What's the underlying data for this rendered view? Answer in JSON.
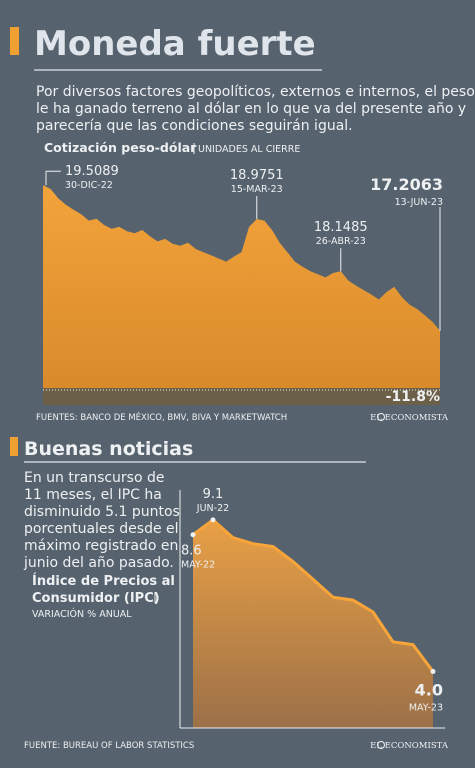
{
  "header": {
    "title": "Moneda fuerte",
    "intro_lines": [
      "Por diversos factores geopolíticos, externos e internos, el peso",
      "le ha ganado terreno al dólar en lo que va del presente año y",
      "parecería que las condiciones seguirán igual."
    ],
    "source": "FUENTES: BANCO DE MÉXICO, BMV, BIVA Y MARKETWATCH",
    "brand": "EL ECONOMISTA"
  },
  "section2": {
    "title": "Buenas noticias",
    "text_lines": [
      "En un transcurso de",
      "11 meses, el IPC ha",
      "disminuido 5.1 puntos",
      "porcentuales desde el",
      "máximo registrado en",
      "junio del año pasado."
    ],
    "source": "FUENTE: BUREAU OF LABOR STATISTICS",
    "brand": "EL ECONOMISTA"
  },
  "chart_data": [
    {
      "type": "area",
      "title": "Cotización peso-dólar",
      "subtitle": "UNIDADES AL CIERRE",
      "change_label": "-11.8%",
      "color": "#f0a030",
      "categories": [
        "30-DIC-22",
        null,
        null,
        null,
        null,
        null,
        null,
        null,
        null,
        null,
        null,
        null,
        null,
        null,
        null,
        null,
        null,
        null,
        null,
        null,
        null,
        null,
        null,
        null,
        null,
        null,
        null,
        null,
        "15-MAR-23",
        null,
        null,
        null,
        null,
        null,
        null,
        null,
        null,
        null,
        null,
        "26-ABR-23",
        null,
        null,
        null,
        null,
        null,
        null,
        null,
        null,
        null,
        null,
        null,
        null,
        "13-JUN-23"
      ],
      "values": [
        19.5089,
        19.45,
        19.3,
        19.2,
        19.12,
        19.05,
        18.95,
        18.98,
        18.88,
        18.82,
        18.85,
        18.78,
        18.75,
        18.8,
        18.7,
        18.62,
        18.66,
        18.58,
        18.55,
        18.6,
        18.5,
        18.45,
        18.4,
        18.35,
        18.3,
        18.38,
        18.45,
        18.85,
        18.9751,
        18.95,
        18.8,
        18.6,
        18.45,
        18.3,
        18.22,
        18.15,
        18.1,
        18.05,
        18.12,
        18.1485,
        18.0,
        17.92,
        17.85,
        17.78,
        17.7,
        17.82,
        17.9,
        17.74,
        17.62,
        17.55,
        17.45,
        17.35,
        17.2063
      ],
      "ylim": [
        16.3,
        19.75
      ]
    },
    {
      "type": "area",
      "title_lines": [
        "Índice de Precios al",
        "Consumidor (IPC)"
      ],
      "subtitle": "VARIACIÓN % ANUAL",
      "color": "#f0a030",
      "categories": [
        "MAY-22",
        "JUN-22",
        null,
        null,
        null,
        null,
        null,
        null,
        null,
        null,
        null,
        null,
        "MAY-23"
      ],
      "values": [
        8.6,
        9.1,
        8.5,
        8.3,
        8.2,
        7.7,
        7.1,
        6.5,
        6.4,
        6.0,
        5.0,
        4.9,
        4.0
      ],
      "value_labels": [
        "8.6",
        "9.1",
        null,
        null,
        null,
        null,
        null,
        null,
        null,
        null,
        null,
        null,
        "4.0"
      ],
      "ylim": [
        2.1,
        9.6
      ]
    }
  ]
}
